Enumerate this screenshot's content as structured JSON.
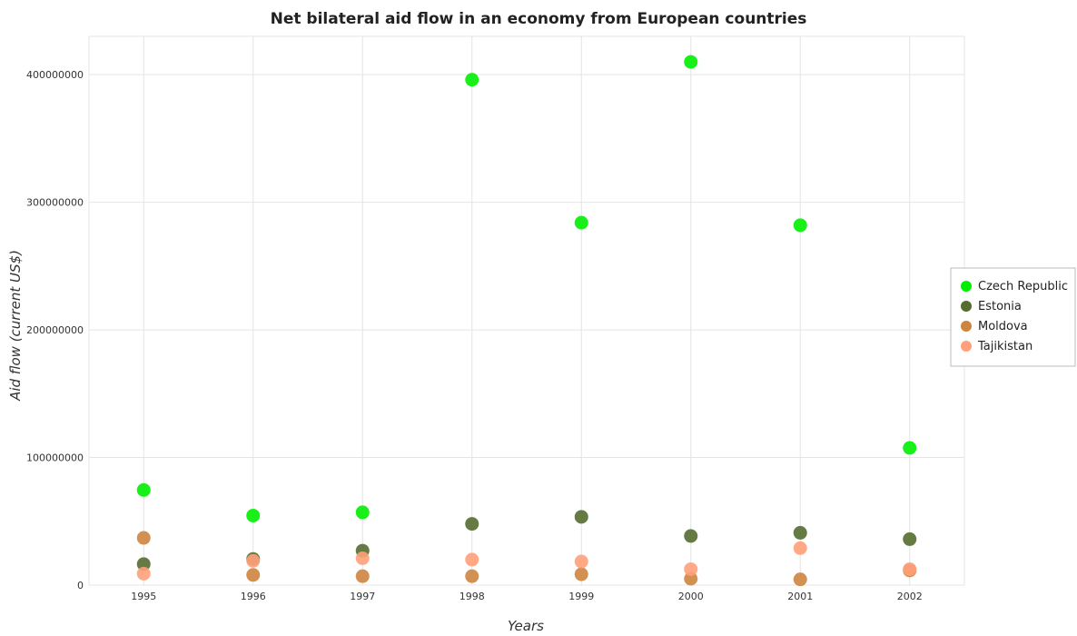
{
  "chart_data": {
    "type": "scatter",
    "title": "Net bilateral aid flow in an economy from European countries",
    "xlabel": "Years",
    "ylabel": "Aid flow (current US$)",
    "categories": [
      "1995",
      "1996",
      "1997",
      "1998",
      "1999",
      "2000",
      "2001",
      "2002"
    ],
    "ylim": [
      0,
      430000000
    ],
    "yticks": [
      0,
      100000000,
      200000000,
      300000000,
      400000000
    ],
    "ytick_labels": [
      "0",
      "100000000",
      "200000000",
      "300000000",
      "400000000"
    ],
    "grid": true,
    "legend_position": "right",
    "series": [
      {
        "name": "Czech Republic",
        "color": "#00ee00",
        "values": [
          74500000,
          54500000,
          57000000,
          396000000,
          284000000,
          410000000,
          282000000,
          107500000
        ]
      },
      {
        "name": "Estonia",
        "color": "#556b2f",
        "values": [
          16500000,
          20500000,
          27000000,
          48000000,
          53500000,
          38500000,
          41000000,
          36000000
        ]
      },
      {
        "name": "Moldova",
        "color": "#cd853f",
        "values": [
          37000000,
          8000000,
          7000000,
          7000000,
          8500000,
          5000000,
          4500000,
          11500000
        ]
      },
      {
        "name": "Tajikistan",
        "color": "#ffa07a",
        "values": [
          9000000,
          19000000,
          21000000,
          20000000,
          18500000,
          12500000,
          29000000,
          12500000
        ]
      }
    ]
  }
}
